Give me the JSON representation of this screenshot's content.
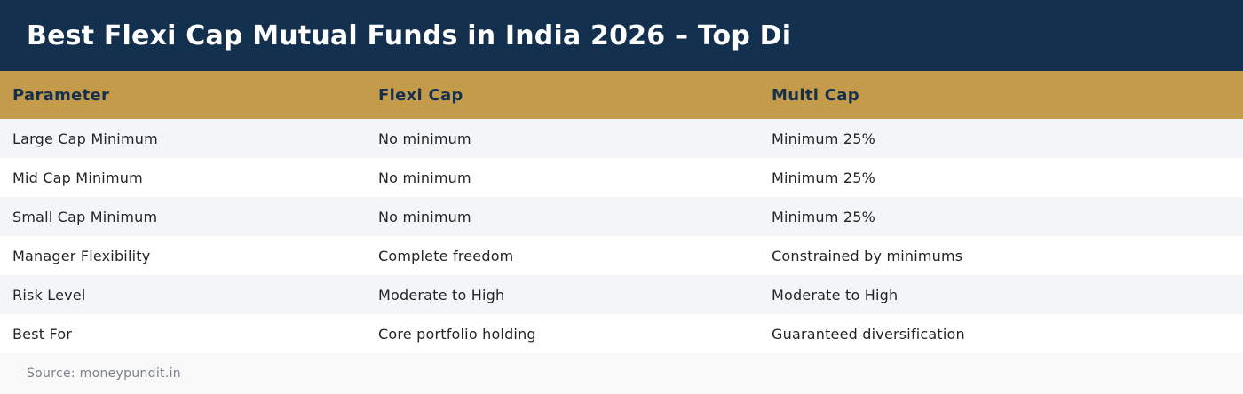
{
  "title": "Best Flexi Cap Mutual Funds in India 2026 – Top Di",
  "table": {
    "headers": [
      "Parameter",
      "Flexi Cap",
      "Multi Cap"
    ],
    "rows": [
      [
        "Large Cap Minimum",
        "No minimum",
        "Minimum 25%"
      ],
      [
        "Mid Cap Minimum",
        "No minimum",
        "Minimum 25%"
      ],
      [
        "Small Cap Minimum",
        "No minimum",
        "Minimum 25%"
      ],
      [
        "Manager Flexibility",
        "Complete freedom",
        "Constrained by minimums"
      ],
      [
        "Risk Level",
        "Moderate to High",
        "Moderate to High"
      ],
      [
        "Best For",
        "Core portfolio holding",
        "Guaranteed diversification"
      ]
    ]
  },
  "source": "Source: moneypundit.in",
  "colors": {
    "title_bg": "#14304f",
    "header_bg": "#c49b4b",
    "header_text": "#14304f",
    "row_alt": "#f4f5f8"
  }
}
